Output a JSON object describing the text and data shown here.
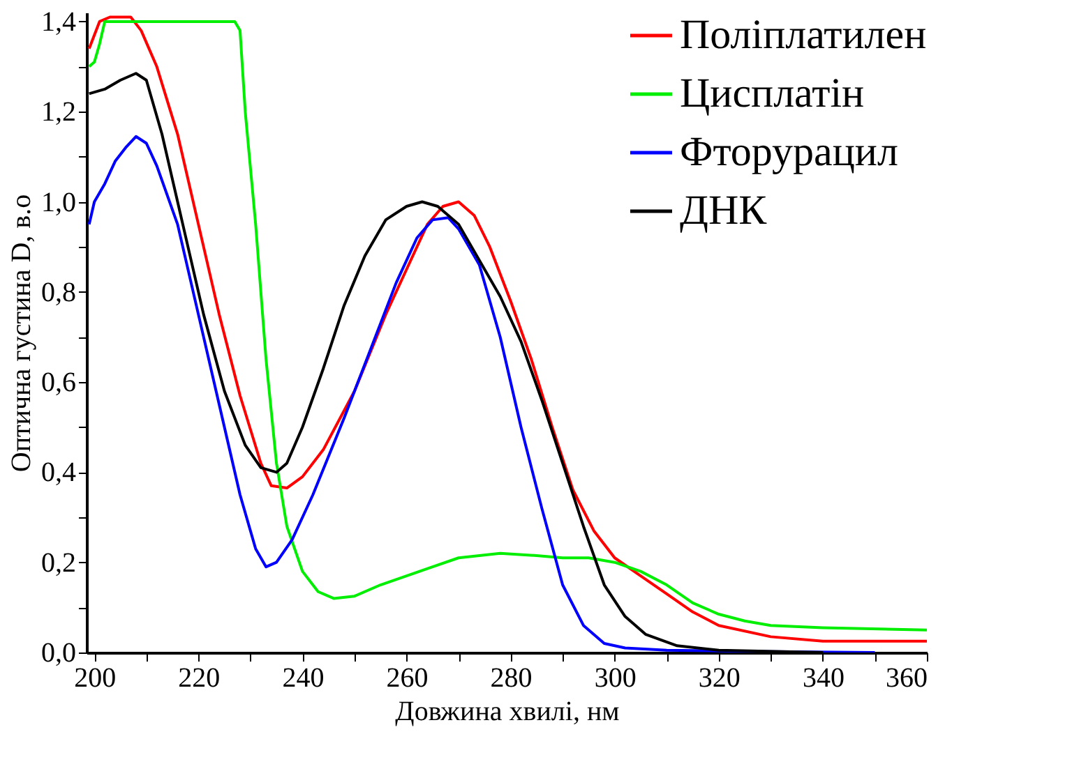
{
  "chart_data": {
    "type": "line",
    "xlabel": "Довжина хвилі, нм",
    "ylabel": "Оптична густина D, в.о",
    "xlim": [
      198.5,
      360
    ],
    "ylim": [
      0,
      1.42
    ],
    "xticks": [
      200,
      {
        "value": 210,
        "label": null
      },
      220,
      {
        "value": 230,
        "label": null
      },
      240,
      {
        "value": 250,
        "label": null
      },
      260,
      {
        "value": 270,
        "label": null
      },
      280,
      {
        "value": 290,
        "label": null
      },
      300,
      {
        "value": 310,
        "label": null
      },
      320,
      {
        "value": 330,
        "label": null
      },
      340,
      {
        "value": 350,
        "label": null
      },
      360
    ],
    "yticks": [
      {
        "value": 0,
        "label": "0,0"
      },
      {
        "value": 0.1,
        "label": null
      },
      {
        "value": 0.2,
        "label": "0,2"
      },
      {
        "value": 0.3,
        "label": null
      },
      {
        "value": 0.4,
        "label": "0,4"
      },
      {
        "value": 0.5,
        "label": null
      },
      {
        "value": 0.6,
        "label": "0,6"
      },
      {
        "value": 0.7,
        "label": null
      },
      {
        "value": 0.8,
        "label": "0,8"
      },
      {
        "value": 0.9,
        "label": null
      },
      {
        "value": 1.0,
        "label": "1,0"
      },
      {
        "value": 1.1,
        "label": null
      },
      {
        "value": 1.2,
        "label": "1,2"
      },
      {
        "value": 1.3,
        "label": null
      },
      {
        "value": 1.4,
        "label": "1,4"
      }
    ],
    "grid": false,
    "legend": "top right",
    "line_style": "solid",
    "marker": "none",
    "series": [
      {
        "name": "Поліплатилен",
        "color": "#ff0000",
        "x": [
          199,
          201,
          203,
          207,
          209,
          212,
          216,
          220,
          224,
          228,
          232,
          234,
          237,
          240,
          244,
          250,
          256,
          260,
          264,
          267,
          270,
          273,
          276,
          280,
          284,
          288,
          292,
          296,
          300,
          305,
          310,
          315,
          320,
          330,
          340,
          360
        ],
        "values": [
          1.34,
          1.4,
          1.41,
          1.41,
          1.38,
          1.3,
          1.15,
          0.95,
          0.75,
          0.57,
          0.42,
          0.37,
          0.365,
          0.39,
          0.45,
          0.58,
          0.75,
          0.85,
          0.95,
          0.99,
          1.0,
          0.97,
          0.9,
          0.78,
          0.65,
          0.5,
          0.36,
          0.27,
          0.21,
          0.17,
          0.13,
          0.09,
          0.06,
          0.035,
          0.025,
          0.025
        ]
      },
      {
        "name": "Цисплатін",
        "color": "#00ee00",
        "x": [
          199,
          200,
          201,
          202,
          210,
          220,
          227,
          228,
          229,
          231,
          233,
          235,
          237,
          240,
          243,
          246,
          250,
          255,
          260,
          265,
          270,
          278,
          285,
          290,
          295,
          300,
          305,
          310,
          315,
          320,
          325,
          330,
          340,
          360
        ],
        "values": [
          1.3,
          1.31,
          1.35,
          1.4,
          1.4,
          1.4,
          1.4,
          1.38,
          1.2,
          0.95,
          0.65,
          0.42,
          0.28,
          0.18,
          0.135,
          0.12,
          0.125,
          0.15,
          0.17,
          0.19,
          0.21,
          0.22,
          0.215,
          0.21,
          0.21,
          0.2,
          0.18,
          0.15,
          0.11,
          0.085,
          0.07,
          0.06,
          0.055,
          0.05
        ]
      },
      {
        "name": "Фторурацил",
        "color": "#0000ff",
        "x": [
          199,
          200,
          202,
          204,
          206,
          208,
          210,
          212,
          216,
          220,
          224,
          228,
          231,
          233,
          235,
          238,
          242,
          248,
          254,
          258,
          262,
          265,
          268,
          270,
          274,
          278,
          282,
          286,
          290,
          294,
          298,
          302,
          310,
          330,
          350
        ],
        "values": [
          0.95,
          1.0,
          1.04,
          1.09,
          1.12,
          1.145,
          1.13,
          1.08,
          0.95,
          0.75,
          0.55,
          0.35,
          0.23,
          0.19,
          0.2,
          0.25,
          0.35,
          0.52,
          0.7,
          0.82,
          0.92,
          0.96,
          0.965,
          0.94,
          0.86,
          0.7,
          0.5,
          0.32,
          0.15,
          0.06,
          0.02,
          0.01,
          0.005,
          0.002,
          0.0
        ]
      },
      {
        "name": "ДНК",
        "color": "#000000",
        "x": [
          199,
          202,
          205,
          208,
          210,
          213,
          217,
          221,
          225,
          229,
          232,
          235,
          237,
          240,
          244,
          248,
          252,
          256,
          260,
          263,
          266,
          270,
          274,
          278,
          282,
          286,
          290,
          294,
          298,
          302,
          306,
          312,
          320,
          340
        ],
        "values": [
          1.24,
          1.25,
          1.27,
          1.285,
          1.27,
          1.15,
          0.95,
          0.75,
          0.58,
          0.46,
          0.41,
          0.4,
          0.42,
          0.5,
          0.63,
          0.77,
          0.88,
          0.96,
          0.99,
          1.0,
          0.99,
          0.95,
          0.87,
          0.79,
          0.69,
          0.56,
          0.42,
          0.28,
          0.15,
          0.08,
          0.04,
          0.015,
          0.005,
          0.0
        ]
      }
    ]
  }
}
